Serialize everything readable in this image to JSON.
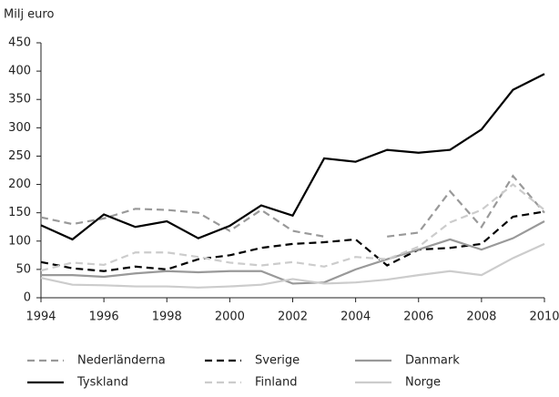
{
  "chart_data": {
    "type": "line",
    "y_label": "Milj euro",
    "x": [
      1994,
      1995,
      1996,
      1997,
      1998,
      1999,
      2000,
      2001,
      2002,
      2003,
      2004,
      2005,
      2006,
      2007,
      2008,
      2009,
      2010
    ],
    "xlim": [
      1994,
      2010
    ],
    "xticks": [
      1994,
      1996,
      1998,
      2000,
      2002,
      2004,
      2006,
      2008,
      2010
    ],
    "ylim": [
      0,
      450
    ],
    "yticks": [
      0,
      50,
      100,
      150,
      200,
      250,
      300,
      350,
      400,
      450
    ],
    "legend": "bottom",
    "series": [
      {
        "name": "Nederländerna",
        "color": "#999999",
        "dashed": true,
        "values": [
          142,
          130,
          140,
          157,
          155,
          150,
          118,
          155,
          118,
          108,
          null,
          108,
          115,
          188,
          125,
          215,
          150
        ]
      },
      {
        "name": "Sverige",
        "color": "#000000",
        "dashed": true,
        "values": [
          63,
          52,
          47,
          55,
          50,
          68,
          75,
          88,
          95,
          98,
          103,
          57,
          85,
          88,
          95,
          143,
          152
        ]
      },
      {
        "name": "Danmark",
        "color": "#999999",
        "dashed": false,
        "values": [
          40,
          40,
          37,
          43,
          47,
          45,
          47,
          47,
          25,
          27,
          50,
          68,
          85,
          103,
          85,
          105,
          135
        ]
      },
      {
        "name": "Tyskland",
        "color": "#000000",
        "dashed": false,
        "values": [
          128,
          103,
          147,
          125,
          135,
          105,
          127,
          163,
          145,
          246,
          240,
          261,
          256,
          261,
          297,
          367,
          395
        ]
      },
      {
        "name": "Finland",
        "color": "#cccccc",
        "dashed": true,
        "values": [
          48,
          62,
          58,
          80,
          80,
          72,
          62,
          57,
          63,
          55,
          72,
          68,
          90,
          133,
          155,
          200,
          155
        ]
      },
      {
        "name": "Norge",
        "color": "#cccccc",
        "dashed": false,
        "values": [
          35,
          23,
          22,
          20,
          20,
          18,
          20,
          23,
          33,
          25,
          27,
          32,
          40,
          47,
          40,
          70,
          95
        ]
      }
    ]
  }
}
